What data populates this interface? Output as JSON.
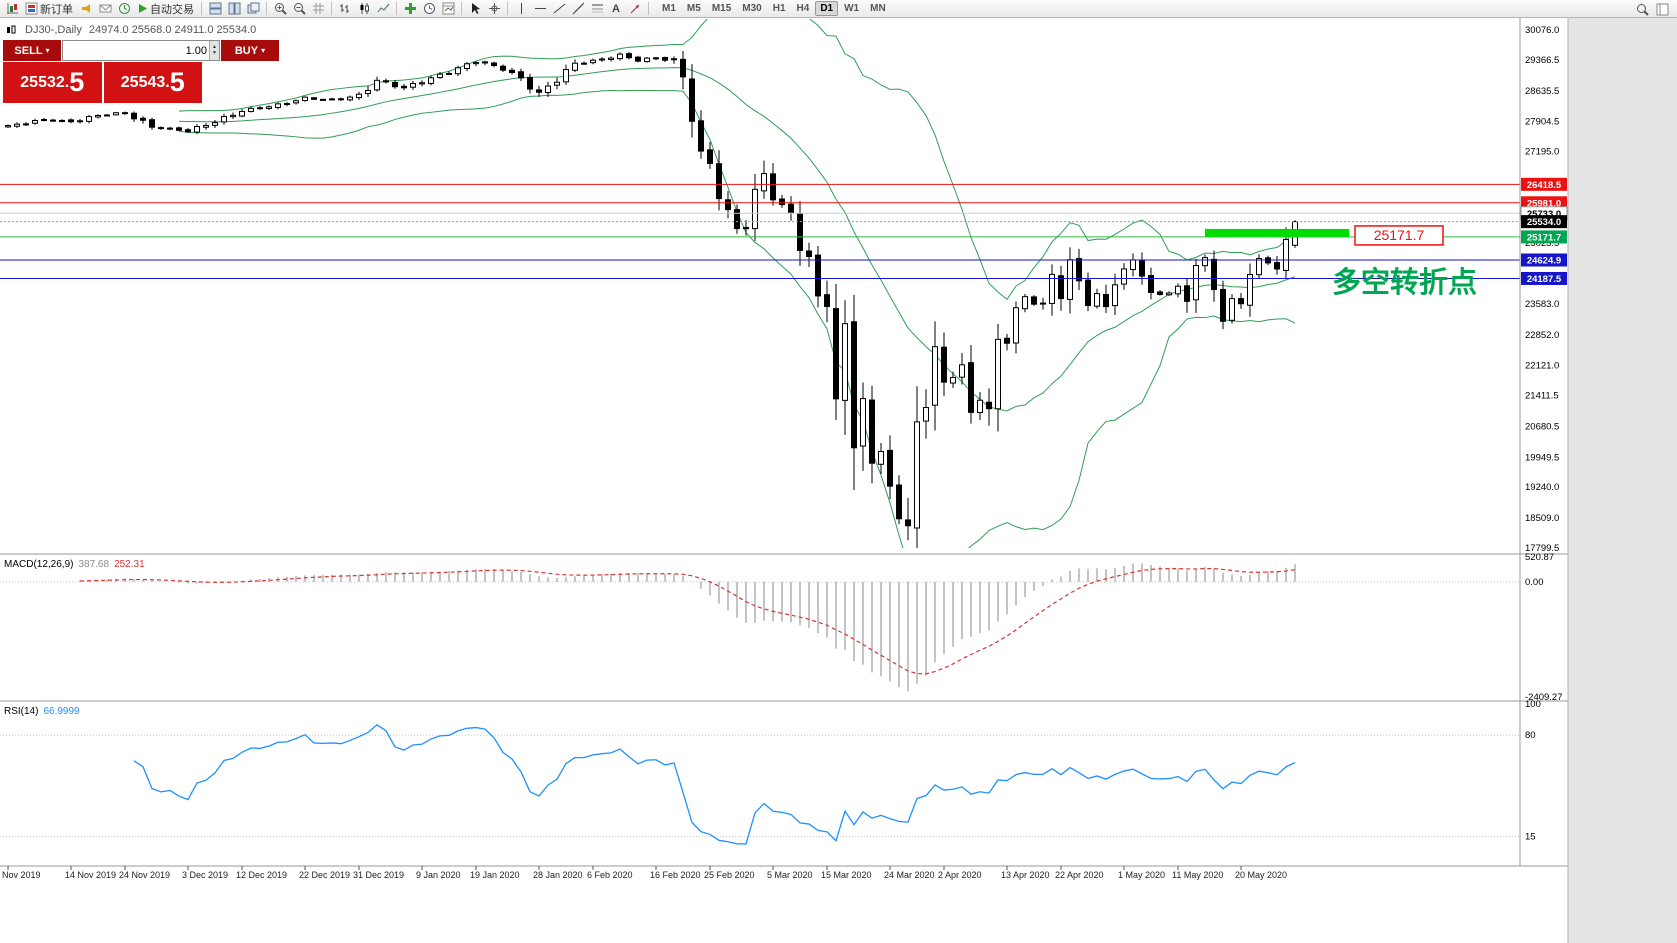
{
  "toolbar": {
    "new_order": "新订单",
    "auto_trading": "自动交易",
    "timeframes": [
      "M1",
      "M5",
      "M15",
      "M30",
      "H1",
      "H4",
      "D1",
      "W1",
      "MN"
    ],
    "active_timeframe": "D1"
  },
  "icons": {
    "dropdown_caret": "▾",
    "spin_up": "▲",
    "spin_down": "▼",
    "text_tool": "A"
  },
  "header": {
    "symbol": "DJ30-,Daily",
    "ohlc": "24974.0 25568.0 24911.0 25534.0"
  },
  "trade": {
    "sell_label": "SELL",
    "buy_label": "BUY",
    "volume": "1.00",
    "sell_price_main": "25532.",
    "sell_price_big": "5",
    "buy_price_main": "25543.",
    "buy_price_big": "5"
  },
  "annotations": {
    "level_label": "25171.7",
    "turning_point": "多空转折点"
  },
  "price_axis_labels": [
    "30076.0",
    "29366.5",
    "28635.5",
    "27904.5",
    "27195.0",
    "25023.5",
    "23583.0",
    "22852.0",
    "22121.0",
    "21411.5",
    "20680.5",
    "19949.5",
    "19240.0",
    "18509.0",
    "17799.5"
  ],
  "hlines": [
    {
      "price": 26418.5,
      "tag": "26418.5",
      "line": "#ee1111",
      "dash": "",
      "tag_bg": "#ee1111",
      "tag_fg": "#ffffff"
    },
    {
      "price": 25981.0,
      "tag": "25981.0",
      "line": "#ee1111",
      "dash": "",
      "tag_bg": "#ee1111",
      "tag_fg": "#ffffff"
    },
    {
      "price": 25733.0,
      "tag": "25733.0",
      "line": "#cccccc",
      "dash": "",
      "tag_bg": "#ffffff",
      "tag_fg": "#000000"
    },
    {
      "price": 25534.0,
      "tag": "25534.0",
      "line": "#999999",
      "dash": "2,2",
      "tag_bg": "#000000",
      "tag_fg": "#ffffff"
    },
    {
      "price": 25171.7,
      "tag": "25171.7",
      "line": "#2dbb45",
      "dash": "",
      "tag_bg": "#00a651",
      "tag_fg": "#ffffff"
    },
    {
      "price": 24624.9,
      "tag": "24624.9",
      "line": "#1616c8",
      "dash": "",
      "tag_bg": "#1616c8",
      "tag_fg": "#ffffff"
    },
    {
      "price": 24187.5,
      "tag": "24187.5",
      "line": "#1616c8",
      "dash": "",
      "tag_bg": "#1616c8",
      "tag_fg": "#ffffff"
    }
  ],
  "macd_panel": {
    "name": "MACD(12,26,9)",
    "main_value": "387.68",
    "signal_value": "252.31",
    "axis": [
      {
        "t": "520.87",
        "v": 520.87
      },
      {
        "t": "0.00",
        "v": 0
      },
      {
        "t": "-2409.27",
        "v": -2409.27
      }
    ]
  },
  "rsi_panel": {
    "name": "RSI(14)",
    "value": "66.9999",
    "axis": [
      {
        "t": "100",
        "v": 100
      },
      {
        "t": "80",
        "v": 80
      },
      {
        "t": "15",
        "v": 15
      }
    ]
  },
  "dates": [
    [
      "Nov 2019",
      0
    ],
    [
      "14 Nov 2019",
      7
    ],
    [
      "24 Nov 2019",
      13
    ],
    [
      "3 Dec 2019",
      20
    ],
    [
      "12 Dec 2019",
      26
    ],
    [
      "22 Dec 2019",
      33
    ],
    [
      "31 Dec 2019",
      39
    ],
    [
      "9 Jan 2020",
      46
    ],
    [
      "19 Jan 2020",
      52
    ],
    [
      "28 Jan 2020",
      59
    ],
    [
      "6 Feb 2020",
      65
    ],
    [
      "16 Feb 2020",
      72
    ],
    [
      "25 Feb 2020",
      78
    ],
    [
      "5 Mar 2020",
      85
    ],
    [
      "15 Mar 2020",
      91
    ],
    [
      "24 Mar 2020",
      98
    ],
    [
      "2 Apr 2020",
      104
    ],
    [
      "13 Apr 2020",
      111
    ],
    [
      "22 Apr 2020",
      117
    ],
    [
      "1 May 2020",
      124
    ],
    [
      "11 May 2020",
      130
    ],
    [
      "20 May 2020",
      137
    ]
  ],
  "chart_data": {
    "type": "candlestick",
    "symbol": "DJ30",
    "timeframe": "Daily",
    "bars": 144,
    "price_top": 30076.0,
    "price_bottom": 17799.5,
    "last_candle": {
      "open": 24974.0,
      "high": 25568.0,
      "low": 24911.0,
      "close": 25534.0
    },
    "close_anchors": [
      [
        0,
        27800
      ],
      [
        4,
        27950
      ],
      [
        7,
        27900
      ],
      [
        10,
        28050
      ],
      [
        13,
        28120
      ],
      [
        16,
        27780
      ],
      [
        20,
        27680
      ],
      [
        23,
        27900
      ],
      [
        26,
        28160
      ],
      [
        30,
        28300
      ],
      [
        33,
        28460
      ],
      [
        36,
        28420
      ],
      [
        39,
        28520
      ],
      [
        41,
        28880
      ],
      [
        44,
        28700
      ],
      [
        46,
        28860
      ],
      [
        49,
        29080
      ],
      [
        52,
        29340
      ],
      [
        55,
        29160
      ],
      [
        57,
        28920
      ],
      [
        59,
        28560
      ],
      [
        61,
        28900
      ],
      [
        63,
        29280
      ],
      [
        65,
        29340
      ],
      [
        68,
        29480
      ],
      [
        70,
        29360
      ],
      [
        72,
        29420
      ],
      [
        74,
        29340
      ],
      [
        75,
        28990
      ],
      [
        76,
        27990
      ],
      [
        77,
        27100
      ],
      [
        78,
        26950
      ],
      [
        79,
        26150
      ],
      [
        80,
        25710
      ],
      [
        81,
        25400
      ],
      [
        82,
        25420
      ],
      [
        83,
        26190
      ],
      [
        84,
        26730
      ],
      [
        85,
        26100
      ],
      [
        86,
        25880
      ],
      [
        87,
        25820
      ],
      [
        88,
        24890
      ],
      [
        89,
        24600
      ],
      [
        90,
        23850
      ],
      [
        91,
        23550
      ],
      [
        92,
        21230
      ],
      [
        93,
        23200
      ],
      [
        94,
        20190
      ],
      [
        95,
        21240
      ],
      [
        96,
        19900
      ],
      [
        97,
        20090
      ],
      [
        98,
        19170
      ],
      [
        99,
        18590
      ],
      [
        100,
        18320
      ],
      [
        101,
        20700
      ],
      [
        102,
        21230
      ],
      [
        103,
        22550
      ],
      [
        104,
        21650
      ],
      [
        105,
        21920
      ],
      [
        106,
        22110
      ],
      [
        107,
        20940
      ],
      [
        108,
        21410
      ],
      [
        109,
        21060
      ],
      [
        110,
        22680
      ],
      [
        111,
        22750
      ],
      [
        112,
        23440
      ],
      [
        113,
        23720
      ],
      [
        114,
        23620
      ],
      [
        115,
        23520
      ],
      [
        116,
        24240
      ],
      [
        117,
        23820
      ],
      [
        118,
        24560
      ],
      [
        119,
        24100
      ],
      [
        120,
        23650
      ],
      [
        121,
        23780
      ],
      [
        122,
        23500
      ],
      [
        123,
        24140
      ],
      [
        124,
        24350
      ],
      [
        125,
        24620
      ],
      [
        126,
        24340
      ],
      [
        127,
        23760
      ],
      [
        128,
        23810
      ],
      [
        129,
        23870
      ],
      [
        130,
        23950
      ],
      [
        131,
        23660
      ],
      [
        132,
        24580
      ],
      [
        133,
        24600
      ],
      [
        134,
        23950
      ],
      [
        135,
        23250
      ],
      [
        136,
        23630
      ],
      [
        137,
        23620
      ],
      [
        138,
        24350
      ],
      [
        139,
        24600
      ],
      [
        140,
        24570
      ],
      [
        141,
        24460
      ],
      [
        142,
        25000
      ],
      [
        143,
        25534
      ]
    ],
    "highlight": {
      "from_bar": 133,
      "to_bar": 149,
      "price": 25171.7
    },
    "indicators": {
      "bollinger_period": 20,
      "bollinger_dev": 2,
      "macd": [
        12,
        26,
        9
      ],
      "rsi_period": 14
    }
  }
}
